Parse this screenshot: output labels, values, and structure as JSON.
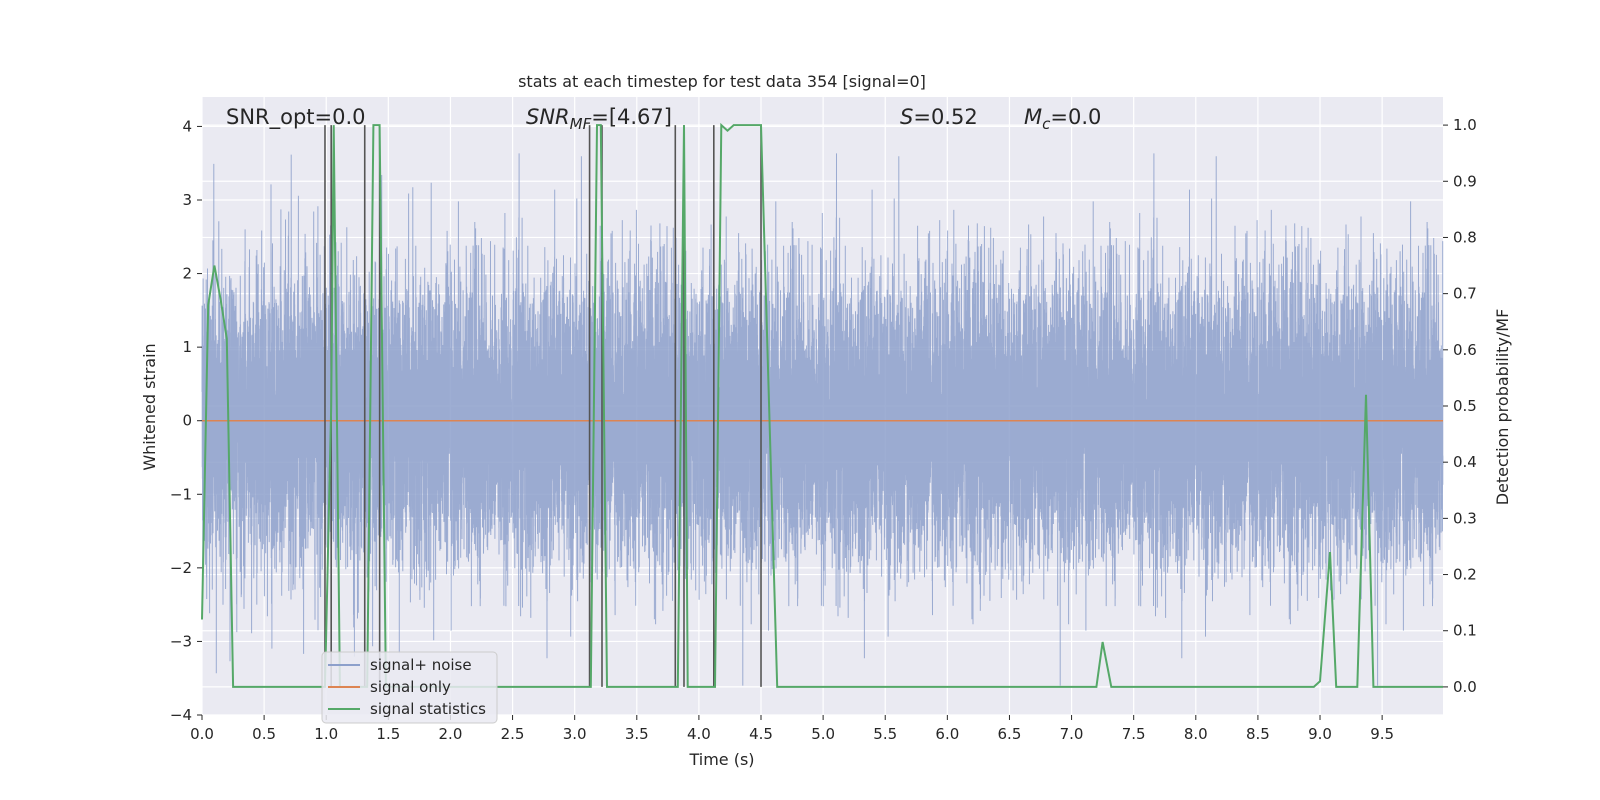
{
  "chart_data": {
    "type": "line",
    "title": "stats at each timestep for test data 354 [signal=0]",
    "xlabel": "Time (s)",
    "ylabel": "Whitened strain",
    "ylabel_right": "Detection probability/MF",
    "xlim": [
      0.0,
      9.99
    ],
    "ylim": [
      -4.0,
      4.4
    ],
    "ylim_right": [
      -0.05,
      1.05
    ],
    "x_ticks": [
      "0.0",
      "0.5",
      "1.0",
      "1.5",
      "2.0",
      "2.5",
      "3.0",
      "3.5",
      "4.0",
      "4.5",
      "5.0",
      "5.5",
      "6.0",
      "6.5",
      "7.0",
      "7.5",
      "8.0",
      "8.5",
      "9.0",
      "9.5"
    ],
    "y_ticks": [
      "4",
      "3",
      "2",
      "1",
      "0",
      "−1",
      "−2",
      "−3",
      "−4"
    ],
    "y_ticks_right": [
      "1.0",
      "0.9",
      "0.8",
      "0.7",
      "0.6",
      "0.5",
      "0.4",
      "0.3",
      "0.2",
      "0.1",
      "0.0"
    ],
    "grid": true,
    "legend_position": "lower-left",
    "colors": {
      "background": "#eaeaf2",
      "grid": "#ffffff",
      "noise": "#8da0cb",
      "signal_only": "#dd8452",
      "statistics": "#55a868",
      "marker": "#555555"
    },
    "annotations": {
      "snr_opt": "SNR_opt=0.0",
      "snr_mf_base": "SNR",
      "snr_mf_sub": "MF",
      "snr_mf_value": "=[4.67]",
      "s_symbol": "S",
      "s_value": "=0.52",
      "mc_base": "M",
      "mc_sub": "c",
      "mc_value": "=0.0"
    },
    "legend": [
      "signal+ noise",
      "signal only",
      "signal statistics"
    ],
    "series": [
      {
        "name": "signal+ noise",
        "axis": "left",
        "kind": "noise",
        "sample_rate_hz": 2048,
        "typical_range": [
          -2.4,
          2.4
        ],
        "extreme_range": [
          -3.6,
          4.0
        ]
      },
      {
        "name": "signal only",
        "axis": "left",
        "x": [
          0.0,
          9.99
        ],
        "y": [
          0.0,
          0.0
        ]
      },
      {
        "name": "signal statistics",
        "axis": "right",
        "x": [
          0.0,
          0.05,
          0.1,
          0.15,
          0.2,
          0.25,
          0.99,
          1.04,
          1.06,
          1.11,
          1.33,
          1.38,
          1.43,
          1.48,
          3.13,
          3.18,
          3.21,
          3.26,
          3.33,
          3.83,
          3.88,
          3.91,
          4.13,
          4.18,
          4.23,
          4.28,
          4.35,
          4.5,
          4.63,
          7.2,
          7.25,
          7.32,
          8.95,
          9.0,
          9.08,
          9.13,
          9.3,
          9.37,
          9.43,
          9.99
        ],
        "y": [
          0.12,
          0.68,
          0.75,
          0.69,
          0.62,
          0.0,
          0.0,
          0.5,
          1.0,
          0.0,
          0.0,
          1.0,
          1.0,
          0.0,
          0.0,
          1.0,
          1.0,
          0.0,
          0.0,
          0.0,
          1.0,
          0.0,
          0.0,
          1.0,
          0.99,
          1.0,
          1.0,
          1.0,
          0.0,
          0.0,
          0.08,
          0.0,
          0.0,
          0.01,
          0.24,
          0.0,
          0.0,
          0.52,
          0.0,
          0.0
        ]
      }
    ],
    "markers_x": [
      0.99,
      1.04,
      1.31,
      1.43,
      3.12,
      3.22,
      3.81,
      3.88,
      4.12,
      4.5
    ]
  }
}
